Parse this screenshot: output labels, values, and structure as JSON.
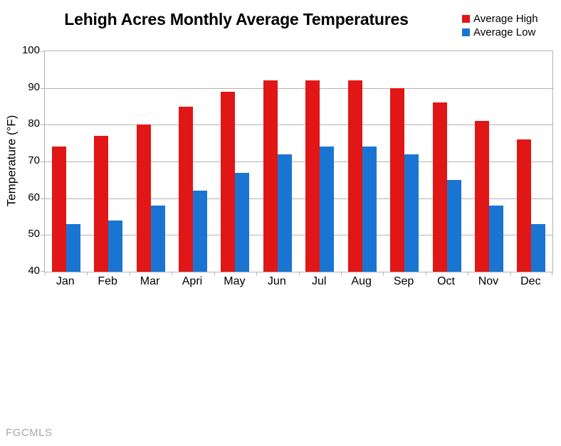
{
  "page": {
    "watermark": "FGCMLS"
  },
  "chart_data": {
    "type": "bar",
    "title": "Lehigh Acres Monthly Average Temperatures",
    "xlabel": "",
    "ylabel": "Temperature (°F)",
    "categories": [
      "Jan",
      "Feb",
      "Mar",
      "Apri",
      "May",
      "Jun",
      "Jul",
      "Aug",
      "Sep",
      "Oct",
      "Nov",
      "Dec"
    ],
    "series": [
      {
        "name": "Average High",
        "color": "#e11616",
        "values": [
          74,
          77,
          80,
          85,
          89,
          92,
          92,
          92,
          90,
          86,
          81,
          76
        ]
      },
      {
        "name": "Average Low",
        "color": "#1a75d2",
        "values": [
          53,
          54,
          58,
          62,
          67,
          72,
          74,
          74,
          72,
          65,
          58,
          53
        ]
      }
    ],
    "ylim": [
      40,
      100
    ],
    "y_ticks": [
      40,
      50,
      60,
      70,
      80,
      90,
      100
    ],
    "grid": true,
    "legend_position": "top-right",
    "axis_color": "#b3b3b3"
  }
}
